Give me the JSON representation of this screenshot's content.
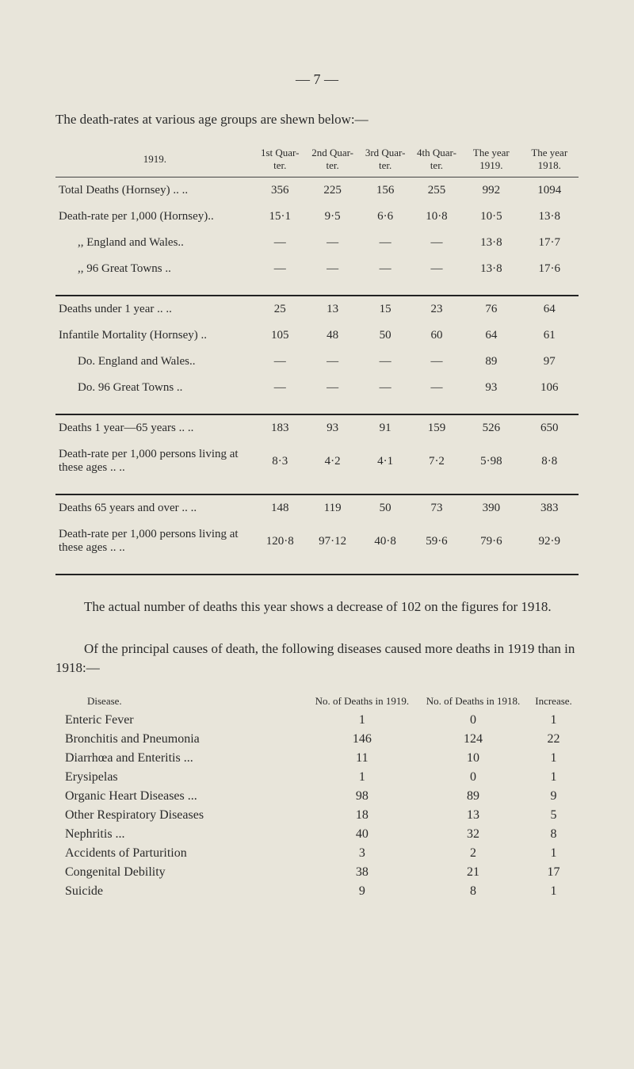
{
  "page_number_text": "— 7 —",
  "intro": "The death-rates at various age groups are shewn below:—",
  "table1": {
    "header": {
      "year_label": "1919.",
      "cols": [
        "1st Quar-ter.",
        "2nd Quar-ter.",
        "3rd Quar-ter.",
        "4th Quar-ter.",
        "The year 1919.",
        "The year 1918."
      ]
    },
    "sections": [
      {
        "rows": [
          {
            "label": "Total Deaths (Hornsey) ..  ..",
            "indent": false,
            "cells": [
              "356",
              "225",
              "156",
              "255",
              "992",
              "1094"
            ]
          },
          {
            "label": "Death-rate per 1,000 (Hornsey)..",
            "indent": false,
            "cells": [
              "15·1",
              "9·5",
              "6·6",
              "10·8",
              "10·5",
              "13·8"
            ]
          },
          {
            "label": ",,   England and Wales..",
            "indent": true,
            "cells": [
              "—",
              "—",
              "—",
              "—",
              "13·8",
              "17·7"
            ]
          },
          {
            "label": ",,   96 Great Towns  ..",
            "indent": true,
            "cells": [
              "—",
              "—",
              "—",
              "—",
              "13·8",
              "17·6"
            ]
          }
        ]
      },
      {
        "rows": [
          {
            "label": "Deaths under 1 year  ..  ..",
            "indent": false,
            "cells": [
              "25",
              "13",
              "15",
              "23",
              "76",
              "64"
            ]
          },
          {
            "label": "Infantile Mortality (Hornsey) ..",
            "indent": false,
            "cells": [
              "105",
              "48",
              "50",
              "60",
              "64",
              "61"
            ]
          },
          {
            "label": "Do.   England and Wales..",
            "indent": true,
            "cells": [
              "—",
              "—",
              "—",
              "—",
              "89",
              "97"
            ]
          },
          {
            "label": "Do.   96 Great Towns  ..",
            "indent": true,
            "cells": [
              "—",
              "—",
              "—",
              "—",
              "93",
              "106"
            ]
          }
        ]
      },
      {
        "rows": [
          {
            "label": "Deaths 1 year—65 years  ..  ..",
            "indent": false,
            "cells": [
              "183",
              "93",
              "91",
              "159",
              "526",
              "650"
            ]
          },
          {
            "label": "Death-rate per 1,000 persons living at these ages  ..  ..",
            "indent": false,
            "cells": [
              "8·3",
              "4·2",
              "4·1",
              "7·2",
              "5·98",
              "8·8"
            ]
          }
        ]
      },
      {
        "rows": [
          {
            "label": "Deaths 65 years and over ..  ..",
            "indent": false,
            "cells": [
              "148",
              "119",
              "50",
              "73",
              "390",
              "383"
            ]
          },
          {
            "label": "Death-rate per 1,000 persons living at these ages  ..  ..",
            "indent": false,
            "cells": [
              "120·8",
              "97·12",
              "40·8",
              "59·6",
              "79·6",
              "92·9"
            ]
          }
        ]
      }
    ]
  },
  "para1": "The actual number of deaths this year shows a decrease of 102 on the figures for 1918.",
  "para2": "Of the principal causes of death, the following diseases caused more deaths in 1919 than in 1918:—",
  "table2": {
    "headers": {
      "disease": "Disease.",
      "d1919": "No. of Deaths in 1919.",
      "d1918": "No. of Deaths in 1918.",
      "inc": "Increase."
    },
    "rows": [
      {
        "disease": "Enteric Fever",
        "d1919": "1",
        "d1918": "0",
        "inc": "1"
      },
      {
        "disease": "Bronchitis and Pneumonia",
        "d1919": "146",
        "d1918": "124",
        "inc": "22"
      },
      {
        "disease": "Diarrhœa and Enteritis ...",
        "d1919": "11",
        "d1918": "10",
        "inc": "1"
      },
      {
        "disease": "Erysipelas",
        "d1919": "1",
        "d1918": "0",
        "inc": "1"
      },
      {
        "disease": "Organic Heart Diseases ...",
        "d1919": "98",
        "d1918": "89",
        "inc": "9"
      },
      {
        "disease": "Other Respiratory Diseases",
        "d1919": "18",
        "d1918": "13",
        "inc": "5"
      },
      {
        "disease": "Nephritis ...",
        "d1919": "40",
        "d1918": "32",
        "inc": "8"
      },
      {
        "disease": "Accidents of Parturition",
        "d1919": "3",
        "d1918": "2",
        "inc": "1"
      },
      {
        "disease": "Congenital Debility",
        "d1919": "38",
        "d1918": "21",
        "inc": "17"
      },
      {
        "disease": "Suicide",
        "d1919": "9",
        "d1918": "8",
        "inc": "1"
      }
    ]
  }
}
